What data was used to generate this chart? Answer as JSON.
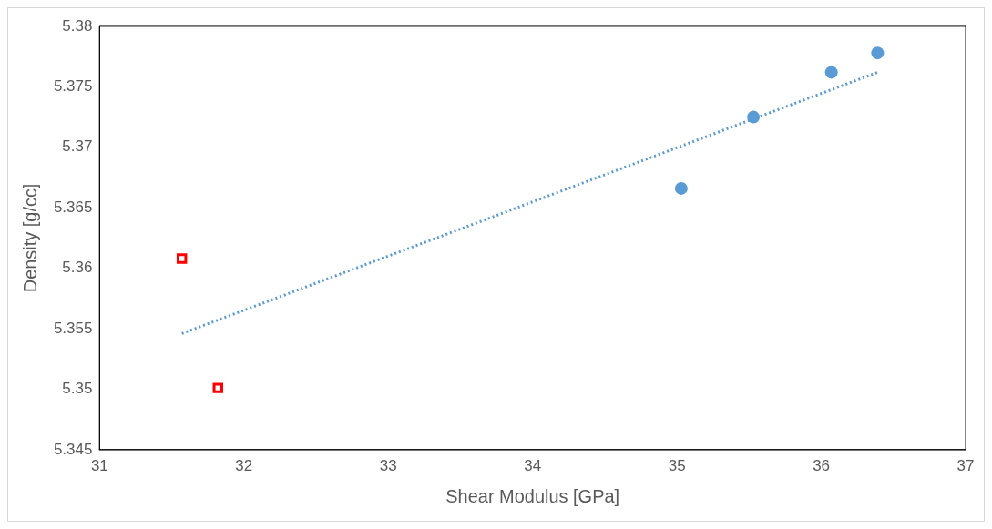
{
  "chart_data": {
    "type": "scatter",
    "xlabel": "Shear Modulus [GPa]",
    "ylabel": "Density [g/cc]",
    "xlim": [
      31,
      37
    ],
    "xticks": [
      31,
      32,
      33,
      34,
      35,
      36,
      37
    ],
    "ylim": [
      5.345,
      5.38
    ],
    "yticks": [
      {
        "value": 5.345,
        "label": "5.345"
      },
      {
        "value": 5.35,
        "label": "5.35"
      },
      {
        "value": 5.355,
        "label": "5.355"
      },
      {
        "value": 5.36,
        "label": "5.36"
      },
      {
        "value": 5.365,
        "label": "5.365"
      },
      {
        "value": 5.37,
        "label": "5.37"
      },
      {
        "value": 5.375,
        "label": "5.375"
      },
      {
        "value": 5.38,
        "label": "5.38"
      }
    ],
    "grid": false,
    "legend": false,
    "series": [
      {
        "type": "scatter",
        "marker": "circle",
        "color": "#5b9bd5",
        "x": [
          35.03,
          35.53,
          36.07,
          36.39
        ],
        "values": [
          5.3666,
          5.3725,
          5.3762,
          5.3778
        ]
      },
      {
        "type": "scatter",
        "marker": "square",
        "color": "#ff0000",
        "x": [
          31.57,
          31.82
        ],
        "values": [
          5.3608,
          5.3501
        ]
      },
      {
        "type": "line",
        "marker": "none",
        "line_style": "dotted",
        "color": "#5b9bd5",
        "x": [
          31.57,
          36.39
        ],
        "values": [
          5.3546,
          5.3762
        ]
      }
    ]
  }
}
